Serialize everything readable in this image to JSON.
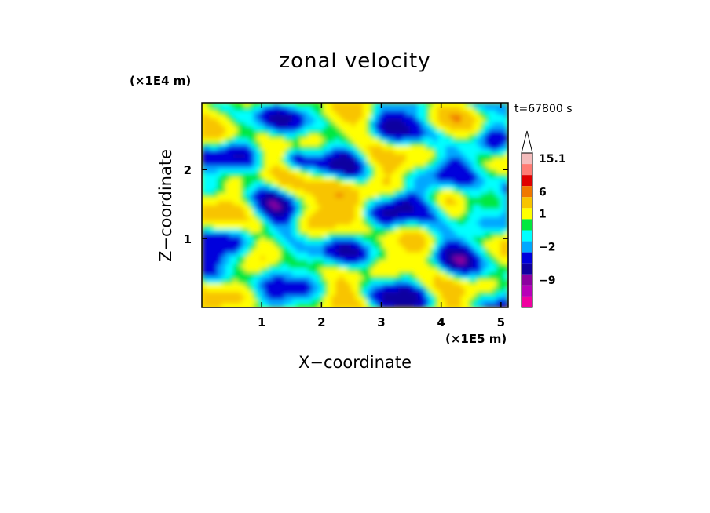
{
  "chart_data": {
    "type": "heatmap",
    "title": "zonal velocity",
    "xlabel": "X−coordinate",
    "ylabel": "Z−coordinate",
    "x_unit": "(×1E5 m)",
    "y_unit": "(×1E4 m)",
    "time_label": "t=67800 s",
    "xlim": [
      0,
      5.12
    ],
    "ylim": [
      0,
      2.97
    ],
    "x_ticks": [
      1,
      2,
      3,
      4,
      5
    ],
    "y_ticks": [
      1,
      2
    ],
    "x_tick_labels": [
      "1",
      "2",
      "3",
      "4",
      "5"
    ],
    "y_tick_labels": [
      "1",
      "2"
    ],
    "colorbar": {
      "labels": [
        {
          "text": "15.1",
          "value": 15.1
        },
        {
          "text": "6",
          "value": 6
        },
        {
          "text": "1",
          "value": 1
        },
        {
          "text": "−2",
          "value": -2
        },
        {
          "text": "−9",
          "value": -9
        }
      ],
      "levels": [
        {
          "value": 15.1,
          "color": "#f4bcbc"
        },
        {
          "value": 12,
          "color": "#ff7c74"
        },
        {
          "value": 9,
          "color": "#e00000"
        },
        {
          "value": 6,
          "color": "#f07800"
        },
        {
          "value": 3,
          "color": "#f8c400"
        },
        {
          "value": 1,
          "color": "#ffff00"
        },
        {
          "value": 0,
          "color": "#00e840"
        },
        {
          "value": -1,
          "color": "#00ffff"
        },
        {
          "value": -2,
          "color": "#00a8ff"
        },
        {
          "value": -4,
          "color": "#0000dc"
        },
        {
          "value": -6,
          "color": "#1000a0"
        },
        {
          "value": -9,
          "color": "#8c00a0"
        },
        {
          "value": -12,
          "color": "#b800b8"
        },
        {
          "value": -15,
          "color": "#f000a0"
        }
      ]
    },
    "grid": false
  }
}
